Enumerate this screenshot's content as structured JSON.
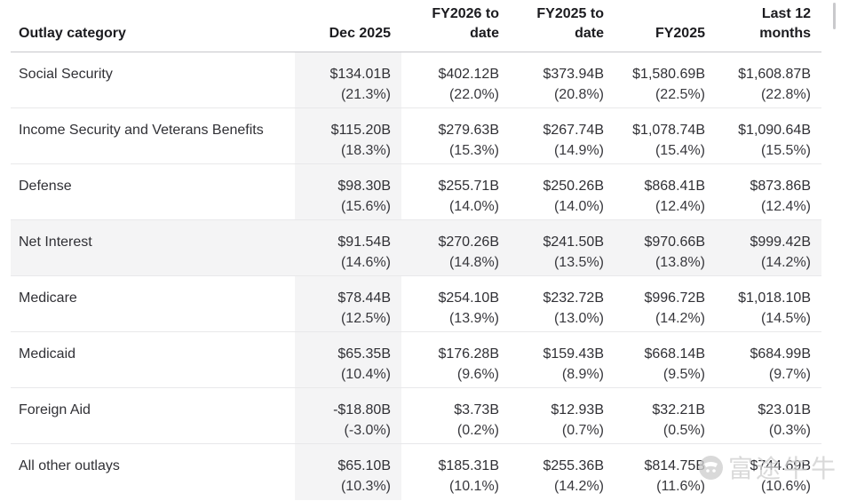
{
  "chart_data": {
    "type": "table",
    "columns": [
      "Outlay category",
      "Dec 2025",
      "FY2026 to date",
      "FY2025 to date",
      "FY2025",
      "Last 12 months"
    ],
    "highlighted_column": "Dec 2025",
    "highlighted_row": "Net Interest",
    "rows": [
      {
        "category": "Social Security",
        "values": [
          {
            "amount": "$134.01B",
            "pct": "(21.3%)"
          },
          {
            "amount": "$402.12B",
            "pct": "(22.0%)"
          },
          {
            "amount": "$373.94B",
            "pct": "(20.8%)"
          },
          {
            "amount": "$1,580.69B",
            "pct": "(22.5%)"
          },
          {
            "amount": "$1,608.87B",
            "pct": "(22.8%)"
          }
        ]
      },
      {
        "category": "Income Security and Veterans Benefits",
        "values": [
          {
            "amount": "$115.20B",
            "pct": "(18.3%)"
          },
          {
            "amount": "$279.63B",
            "pct": "(15.3%)"
          },
          {
            "amount": "$267.74B",
            "pct": "(14.9%)"
          },
          {
            "amount": "$1,078.74B",
            "pct": "(15.4%)"
          },
          {
            "amount": "$1,090.64B",
            "pct": "(15.5%)"
          }
        ]
      },
      {
        "category": "Defense",
        "values": [
          {
            "amount": "$98.30B",
            "pct": "(15.6%)"
          },
          {
            "amount": "$255.71B",
            "pct": "(14.0%)"
          },
          {
            "amount": "$250.26B",
            "pct": "(14.0%)"
          },
          {
            "amount": "$868.41B",
            "pct": "(12.4%)"
          },
          {
            "amount": "$873.86B",
            "pct": "(12.4%)"
          }
        ]
      },
      {
        "category": "Net Interest",
        "values": [
          {
            "amount": "$91.54B",
            "pct": "(14.6%)"
          },
          {
            "amount": "$270.26B",
            "pct": "(14.8%)"
          },
          {
            "amount": "$241.50B",
            "pct": "(13.5%)"
          },
          {
            "amount": "$970.66B",
            "pct": "(13.8%)"
          },
          {
            "amount": "$999.42B",
            "pct": "(14.2%)"
          }
        ]
      },
      {
        "category": "Medicare",
        "values": [
          {
            "amount": "$78.44B",
            "pct": "(12.5%)"
          },
          {
            "amount": "$254.10B",
            "pct": "(13.9%)"
          },
          {
            "amount": "$232.72B",
            "pct": "(13.0%)"
          },
          {
            "amount": "$996.72B",
            "pct": "(14.2%)"
          },
          {
            "amount": "$1,018.10B",
            "pct": "(14.5%)"
          }
        ]
      },
      {
        "category": "Medicaid",
        "values": [
          {
            "amount": "$65.35B",
            "pct": "(10.4%)"
          },
          {
            "amount": "$176.28B",
            "pct": "(9.6%)"
          },
          {
            "amount": "$159.43B",
            "pct": "(8.9%)"
          },
          {
            "amount": "$668.14B",
            "pct": "(9.5%)"
          },
          {
            "amount": "$684.99B",
            "pct": "(9.7%)"
          }
        ]
      },
      {
        "category": "Foreign Aid",
        "values": [
          {
            "amount": "-$18.80B",
            "pct": "(-3.0%)"
          },
          {
            "amount": "$3.73B",
            "pct": "(0.2%)"
          },
          {
            "amount": "$12.93B",
            "pct": "(0.7%)"
          },
          {
            "amount": "$32.21B",
            "pct": "(0.5%)"
          },
          {
            "amount": "$23.01B",
            "pct": "(0.3%)"
          }
        ]
      },
      {
        "category": "All other outlays",
        "values": [
          {
            "amount": "$65.10B",
            "pct": "(10.3%)"
          },
          {
            "amount": "$185.31B",
            "pct": "(10.1%)"
          },
          {
            "amount": "$255.36B",
            "pct": "(14.2%)"
          },
          {
            "amount": "$814.75B",
            "pct": "(11.6%)"
          },
          {
            "amount": "$744.69B",
            "pct": "(10.6%)"
          }
        ]
      }
    ]
  },
  "watermark": {
    "text": "富途牛牛"
  },
  "colors": {
    "highlight_bg": "#f4f4f5",
    "header_border": "#c7c7cb",
    "row_border": "#e8e8ea",
    "header_text": "#1b1b1f",
    "body_text": "#303035",
    "watermark": "#cfcfcf"
  }
}
